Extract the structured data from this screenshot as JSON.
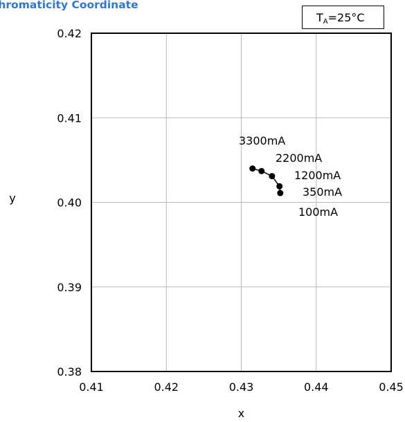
{
  "title": "Chromaticity Coordinate",
  "condition": {
    "symbol": "T",
    "subscript": "A",
    "value": "=25°C"
  },
  "chart_data": {
    "type": "line",
    "title": "Chromaticity Coordinate",
    "xlabel": "x",
    "ylabel": "y",
    "xlim": [
      0.41,
      0.45
    ],
    "ylim": [
      0.38,
      0.42
    ],
    "x_ticks": [
      "0.41",
      "0.42",
      "0.43",
      "0.44",
      "0.45"
    ],
    "y_ticks": [
      "0.42",
      "0.41",
      "0.40",
      "0.39",
      "0.38"
    ],
    "grid": true,
    "series": [
      {
        "x": [
          0.4352,
          0.4351,
          0.4341,
          0.4327,
          0.4315
        ],
        "y": [
          0.4011,
          0.4019,
          0.4031,
          0.4037,
          0.404
        ],
        "color": "#000000",
        "marker": "circle"
      }
    ],
    "annotations": [
      "3300mA",
      "2200mA",
      "1200mA",
      "350mA",
      "100mA"
    ]
  }
}
